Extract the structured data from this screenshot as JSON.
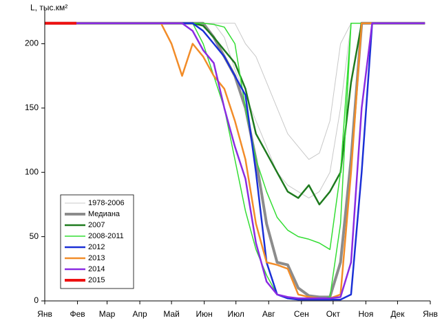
{
  "chart_data": {
    "type": "line",
    "y_label": "L, тыс.км²",
    "xlim": [
      0,
      365
    ],
    "ylim": [
      0,
      226
    ],
    "xticks": [
      {
        "value": 0,
        "label": "Янв"
      },
      {
        "value": 31,
        "label": "Фев"
      },
      {
        "value": 59,
        "label": "Мар"
      },
      {
        "value": 90,
        "label": "Апр"
      },
      {
        "value": 120,
        "label": "Май"
      },
      {
        "value": 151,
        "label": "Июн"
      },
      {
        "value": 181,
        "label": "Июл"
      },
      {
        "value": 212,
        "label": "Авг"
      },
      {
        "value": 243,
        "label": "Сен"
      },
      {
        "value": 273,
        "label": "Окт"
      },
      {
        "value": 304,
        "label": "Ноя"
      },
      {
        "value": 334,
        "label": "Дек"
      },
      {
        "value": 365,
        "label": "Янв"
      }
    ],
    "yticks": [
      0,
      50,
      100,
      150,
      200
    ],
    "legend": "lower left",
    "x": [
      0,
      10,
      20,
      30,
      40,
      50,
      60,
      70,
      80,
      90,
      100,
      110,
      120,
      130,
      140,
      150,
      160,
      170,
      180,
      190,
      200,
      210,
      220,
      230,
      240,
      250,
      260,
      270,
      280,
      290,
      300,
      310,
      320,
      330,
      340,
      350,
      360
    ],
    "series": [
      {
        "name": "1978-2006",
        "color": "#c8c8c8",
        "width": 1,
        "values": [
          216,
          216,
          216,
          216,
          216,
          216,
          216,
          216,
          216,
          216,
          216,
          216,
          216,
          216,
          216,
          216,
          216,
          205,
          180,
          160,
          140,
          120,
          100,
          90,
          85,
          80,
          85,
          100,
          150,
          216,
          216,
          216,
          216,
          216,
          216,
          216,
          216
        ]
      },
      {
        "name": "1978-2006",
        "color": "#c8c8c8",
        "width": 1,
        "values": [
          216,
          216,
          216,
          216,
          216,
          216,
          216,
          216,
          216,
          216,
          216,
          216,
          216,
          216,
          216,
          216,
          216,
          216,
          216,
          200,
          190,
          170,
          150,
          130,
          120,
          110,
          115,
          140,
          200,
          216,
          216,
          216,
          216,
          216,
          216,
          216,
          216
        ]
      },
      {
        "name": "Медиана",
        "color": "#8c8c8c",
        "width": 4,
        "values": [
          216,
          216,
          216,
          216,
          216,
          216,
          216,
          216,
          216,
          216,
          216,
          216,
          216,
          216,
          216,
          216,
          205,
          190,
          175,
          150,
          110,
          60,
          30,
          28,
          10,
          4,
          3,
          3,
          30,
          110,
          216,
          216,
          216,
          216,
          216,
          216,
          216
        ]
      },
      {
        "name": "2007",
        "color": "#1e7a1e",
        "width": 2.5,
        "values": [
          216,
          216,
          216,
          216,
          216,
          216,
          216,
          216,
          216,
          216,
          216,
          216,
          216,
          216,
          216,
          214,
          205,
          195,
          185,
          165,
          130,
          115,
          100,
          85,
          80,
          90,
          75,
          85,
          100,
          170,
          216,
          216,
          216,
          216,
          216,
          216,
          216
        ]
      },
      {
        "name": "2008-2011",
        "color": "#33dd33",
        "width": 1.5,
        "values": [
          216,
          216,
          216,
          216,
          216,
          216,
          216,
          216,
          216,
          216,
          216,
          216,
          216,
          216,
          216,
          200,
          175,
          150,
          110,
          70,
          40,
          20,
          5,
          2,
          1,
          1,
          1,
          3,
          60,
          216,
          216,
          216,
          216,
          216,
          216,
          216,
          216
        ]
      },
      {
        "name": "2008-2011",
        "color": "#33dd33",
        "width": 1.5,
        "values": [
          216,
          216,
          216,
          216,
          216,
          216,
          216,
          216,
          216,
          216,
          216,
          216,
          216,
          216,
          216,
          216,
          215,
          213,
          200,
          150,
          110,
          85,
          65,
          55,
          50,
          48,
          45,
          40,
          100,
          216,
          216,
          216,
          216,
          216,
          216,
          216,
          216
        ]
      },
      {
        "name": "2012",
        "color": "#1a2fd6",
        "width": 2.5,
        "values": [
          216,
          216,
          216,
          216,
          216,
          216,
          216,
          216,
          216,
          216,
          216,
          216,
          216,
          216,
          216,
          210,
          200,
          190,
          175,
          160,
          100,
          30,
          5,
          2,
          1,
          1,
          1,
          1,
          1,
          5,
          100,
          216,
          216,
          216,
          216,
          216,
          216
        ]
      },
      {
        "name": "2013",
        "color": "#f28c28",
        "width": 2.5,
        "values": [
          216,
          216,
          216,
          216,
          216,
          216,
          216,
          216,
          216,
          216,
          216,
          216,
          200,
          175,
          200,
          190,
          175,
          165,
          140,
          110,
          60,
          30,
          28,
          25,
          5,
          3,
          2,
          2,
          5,
          100,
          216,
          216,
          216,
          216,
          216,
          216,
          216
        ]
      },
      {
        "name": "2014",
        "color": "#8a2be2",
        "width": 2.5,
        "values": [
          216,
          216,
          216,
          216,
          216,
          216,
          216,
          216,
          216,
          216,
          216,
          216,
          216,
          216,
          210,
          195,
          185,
          150,
          120,
          95,
          45,
          15,
          5,
          3,
          2,
          2,
          2,
          2,
          3,
          30,
          150,
          216,
          216,
          216,
          216,
          216,
          216
        ]
      },
      {
        "name": "2015",
        "color": "#ee1111",
        "width": 4,
        "values": [
          216,
          216,
          216,
          216,
          null,
          null,
          null,
          null,
          null,
          null,
          null,
          null,
          null,
          null,
          null,
          null,
          null,
          null,
          null,
          null,
          null,
          null,
          null,
          null,
          null,
          null,
          null,
          null,
          null,
          null,
          null,
          null,
          null,
          null,
          null,
          null,
          null
        ]
      }
    ]
  }
}
